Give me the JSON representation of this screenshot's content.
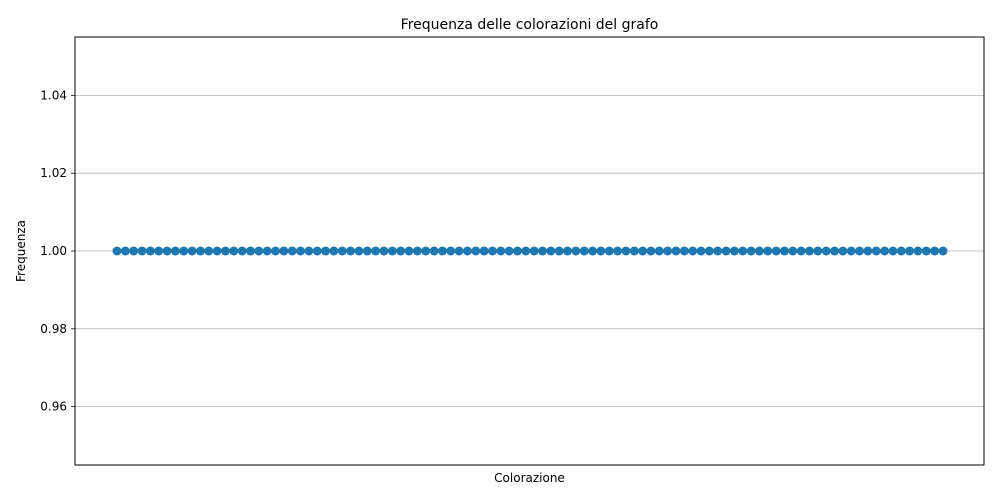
{
  "chart_data": {
    "type": "line",
    "title": "Frequenza delle colorazioni del grafo",
    "xlabel": "Colorazione",
    "ylabel": "Frequenza",
    "ylim": [
      0.945,
      1.055
    ],
    "yticks": [
      0.96,
      0.98,
      1.0,
      1.02,
      1.04
    ],
    "ytick_labels": [
      "0.96",
      "0.98",
      "1.00",
      "1.02",
      "1.04"
    ],
    "grid": "y-axis",
    "legend": "none",
    "marker": "circle",
    "series": [
      {
        "color": "#1f77b4",
        "point_count": 100,
        "value": 1.0
      }
    ]
  }
}
